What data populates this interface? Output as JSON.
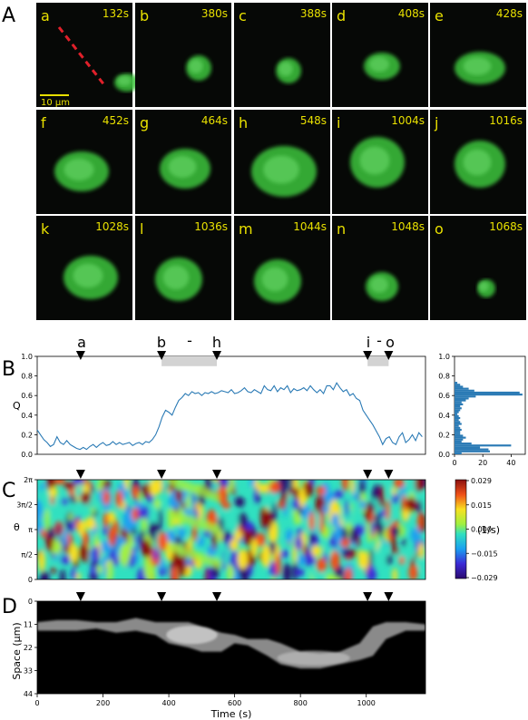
{
  "panel_labels": {
    "A": "A",
    "B": "B",
    "C": "C",
    "D": "D"
  },
  "tiles": [
    {
      "letter": "a",
      "time": "132s"
    },
    {
      "letter": "b",
      "time": "380s"
    },
    {
      "letter": "c",
      "time": "388s"
    },
    {
      "letter": "d",
      "time": "408s"
    },
    {
      "letter": "e",
      "time": "428s"
    },
    {
      "letter": "f",
      "time": "452s"
    },
    {
      "letter": "g",
      "time": "464s"
    },
    {
      "letter": "h",
      "time": "548s"
    },
    {
      "letter": "i",
      "time": "1004s"
    },
    {
      "letter": "j",
      "time": "1016s"
    },
    {
      "letter": "k",
      "time": "1028s"
    },
    {
      "letter": "l",
      "time": "1036s"
    },
    {
      "letter": "m",
      "time": "1044s"
    },
    {
      "letter": "n",
      "time": "1048s"
    },
    {
      "letter": "o",
      "time": "1068s"
    }
  ],
  "scale_bar_label": "10 μm",
  "event_labels": {
    "a": "a",
    "b": "b",
    "dash1": "-",
    "h": "h",
    "i": "i",
    "dash2": "-",
    "o": "o"
  },
  "colors": {
    "line": "#2a7ab5",
    "bar": "#2a7ab5",
    "shade": "#d3d3d3",
    "cell": "#3cc43c",
    "scale": "#e8e000",
    "dash": "#e0202a"
  },
  "chart_data": [
    {
      "type": "line",
      "ylabel": "Q",
      "xlim": [
        0,
        1180
      ],
      "ylim": [
        0,
        1.0
      ],
      "yticks": [
        "0.0",
        "0.2",
        "0.4",
        "0.6",
        "0.8",
        "1.0"
      ],
      "event_times": [
        132,
        378,
        546,
        1004,
        1068
      ],
      "shaded_intervals": [
        [
          378,
          546
        ],
        [
          1004,
          1068
        ]
      ],
      "x": [
        0,
        10,
        20,
        30,
        40,
        50,
        60,
        70,
        80,
        90,
        100,
        110,
        120,
        130,
        140,
        150,
        160,
        170,
        180,
        190,
        200,
        210,
        220,
        230,
        240,
        250,
        260,
        270,
        280,
        290,
        300,
        310,
        320,
        330,
        340,
        350,
        360,
        370,
        380,
        390,
        400,
        410,
        420,
        430,
        440,
        450,
        460,
        470,
        480,
        490,
        500,
        510,
        520,
        530,
        540,
        550,
        560,
        570,
        580,
        590,
        600,
        610,
        620,
        630,
        640,
        650,
        660,
        670,
        680,
        690,
        700,
        710,
        720,
        730,
        740,
        750,
        760,
        770,
        780,
        790,
        800,
        810,
        820,
        830,
        840,
        850,
        860,
        870,
        880,
        890,
        900,
        910,
        920,
        930,
        940,
        950,
        960,
        970,
        980,
        990,
        1000,
        1010,
        1020,
        1030,
        1040,
        1050,
        1060,
        1070,
        1080,
        1090,
        1100,
        1110,
        1120,
        1130,
        1140,
        1150,
        1160,
        1170
      ],
      "y": [
        0.25,
        0.2,
        0.15,
        0.12,
        0.08,
        0.1,
        0.18,
        0.12,
        0.1,
        0.14,
        0.1,
        0.08,
        0.06,
        0.05,
        0.07,
        0.05,
        0.08,
        0.1,
        0.07,
        0.1,
        0.12,
        0.09,
        0.1,
        0.13,
        0.1,
        0.12,
        0.1,
        0.11,
        0.12,
        0.09,
        0.11,
        0.12,
        0.1,
        0.13,
        0.12,
        0.15,
        0.2,
        0.28,
        0.38,
        0.45,
        0.43,
        0.4,
        0.48,
        0.55,
        0.58,
        0.62,
        0.6,
        0.64,
        0.62,
        0.63,
        0.6,
        0.63,
        0.62,
        0.64,
        0.62,
        0.63,
        0.65,
        0.64,
        0.63,
        0.66,
        0.62,
        0.63,
        0.65,
        0.68,
        0.64,
        0.63,
        0.66,
        0.64,
        0.62,
        0.7,
        0.66,
        0.65,
        0.7,
        0.64,
        0.68,
        0.66,
        0.7,
        0.63,
        0.67,
        0.65,
        0.66,
        0.68,
        0.65,
        0.7,
        0.66,
        0.63,
        0.66,
        0.62,
        0.7,
        0.7,
        0.66,
        0.73,
        0.68,
        0.64,
        0.66,
        0.6,
        0.62,
        0.57,
        0.55,
        0.45,
        0.4,
        0.35,
        0.3,
        0.24,
        0.18,
        0.1,
        0.16,
        0.18,
        0.12,
        0.1,
        0.18,
        0.22,
        0.12,
        0.15,
        0.2,
        0.14,
        0.22,
        0.18
      ]
    },
    {
      "type": "bar",
      "orientation": "horizontal",
      "xlim": [
        0,
        50
      ],
      "xticks": [
        "0",
        "20",
        "40"
      ],
      "ylim": [
        0,
        1.0
      ],
      "yticks": [
        "0.0",
        "0.2",
        "0.4",
        "0.6",
        "0.8",
        "1.0"
      ],
      "bin_centers": [
        0.01,
        0.03,
        0.05,
        0.07,
        0.09,
        0.11,
        0.13,
        0.15,
        0.17,
        0.19,
        0.21,
        0.23,
        0.25,
        0.27,
        0.29,
        0.31,
        0.33,
        0.35,
        0.37,
        0.39,
        0.41,
        0.43,
        0.45,
        0.47,
        0.49,
        0.51,
        0.53,
        0.55,
        0.57,
        0.59,
        0.61,
        0.63,
        0.65,
        0.67,
        0.69,
        0.71,
        0.73
      ],
      "values": [
        5,
        25,
        24,
        18,
        40,
        12,
        5,
        6,
        8,
        6,
        4,
        4,
        5,
        4,
        3,
        5,
        4,
        3,
        4,
        3,
        2,
        3,
        4,
        5,
        4,
        6,
        5,
        8,
        10,
        15,
        48,
        46,
        14,
        10,
        6,
        4,
        2
      ]
    },
    {
      "type": "heatmap",
      "ylabel": "θ",
      "yticks": [
        "0",
        "π/2",
        "π",
        "3π/2",
        "2π"
      ],
      "colorbar_ticks": [
        "0.029",
        "0.015",
        "0.000",
        "−0.015",
        "−0.029"
      ],
      "colorbar_range": [
        -0.029,
        0.029
      ],
      "colorbar_label": "(1/s)"
    },
    {
      "type": "heatmap",
      "ylabel": "Space (μm)",
      "yticks": [
        "0",
        "11",
        "22",
        "33",
        "44"
      ],
      "xlabel": "Time (s)",
      "xticks": [
        "0",
        "200",
        "400",
        "600",
        "800",
        "1000"
      ]
    }
  ]
}
